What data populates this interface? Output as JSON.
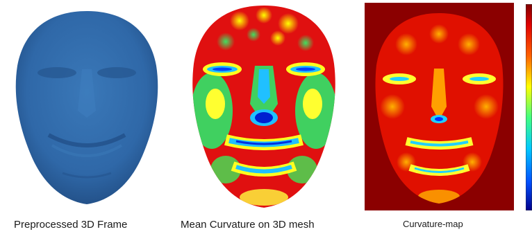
{
  "panels": [
    {
      "caption": "Preprocessed 3D Frame"
    },
    {
      "caption": "Mean Curvature on 3D mesh"
    },
    {
      "caption": "Curvature-map"
    }
  ],
  "colors": {
    "mesh_blue": "#2f68a8",
    "map_background": "#8b0000",
    "colormap": [
      "#00008b",
      "#0050ff",
      "#00c8ff",
      "#40ff80",
      "#ffff00",
      "#ff6000",
      "#e00000",
      "#800000"
    ]
  },
  "colorbar": {
    "orientation": "vertical",
    "colormap": "jet"
  }
}
